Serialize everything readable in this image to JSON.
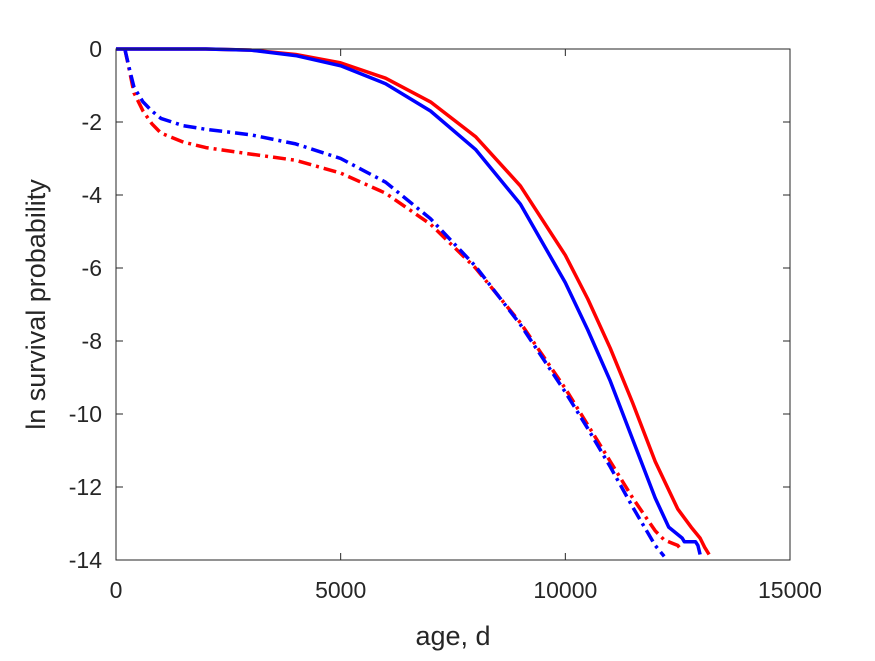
{
  "chart_data": {
    "type": "line",
    "title": "",
    "xlabel": "age, d",
    "ylabel": "ln survival probability",
    "xlim": [
      0,
      15000
    ],
    "ylim": [
      -14,
      0
    ],
    "xticks": [
      0,
      5000,
      10000,
      15000
    ],
    "yticks": [
      0,
      -2,
      -4,
      -6,
      -8,
      -10,
      -12,
      -14
    ],
    "grid": false,
    "legend": "none",
    "axis_color": "#262626",
    "series": [
      {
        "color": "#ff0000",
        "style": "solid",
        "x": [
          0,
          500,
          1000,
          2000,
          3000,
          4000,
          5000,
          6000,
          7000,
          8000,
          9000,
          10000,
          10500,
          11000,
          11500,
          12000,
          12500,
          12800,
          13000,
          13100,
          13200
        ],
        "y": [
          0,
          0,
          0,
          0,
          -0.03,
          -0.15,
          -0.38,
          -0.8,
          -1.45,
          -2.4,
          -3.75,
          -5.65,
          -6.85,
          -8.2,
          -9.7,
          -11.3,
          -12.6,
          -13.1,
          -13.4,
          -13.65,
          -13.85
        ]
      },
      {
        "color": "#0000ff",
        "style": "solid",
        "x": [
          0,
          500,
          1000,
          2000,
          3000,
          4000,
          5000,
          6000,
          7000,
          8000,
          9000,
          10000,
          10500,
          11000,
          11500,
          12000,
          12300,
          12600,
          12650,
          12900,
          12950,
          13000
        ],
        "y": [
          0,
          0,
          0,
          0,
          -0.03,
          -0.18,
          -0.46,
          -0.95,
          -1.7,
          -2.75,
          -4.25,
          -6.4,
          -7.7,
          -9.1,
          -10.7,
          -12.3,
          -13.1,
          -13.4,
          -13.5,
          -13.5,
          -13.6,
          -13.85
        ]
      },
      {
        "color": "#ff0000",
        "style": "dash-dot",
        "x": [
          200,
          300,
          400,
          600,
          800,
          1000,
          1500,
          2000,
          3000,
          4000,
          5000,
          6000,
          7000,
          8000,
          9000,
          10000,
          10500,
          11000,
          11500,
          12000,
          12200,
          12400,
          12500,
          12600
        ],
        "y": [
          -0.02,
          -0.6,
          -1.2,
          -1.7,
          -2.05,
          -2.3,
          -2.55,
          -2.7,
          -2.88,
          -3.05,
          -3.4,
          -3.95,
          -4.8,
          -6.0,
          -7.5,
          -9.3,
          -10.3,
          -11.3,
          -12.3,
          -13.2,
          -13.45,
          -13.55,
          -13.6,
          -13.75
        ]
      },
      {
        "color": "#0000ff",
        "style": "dash-dot",
        "x": [
          200,
          300,
          400,
          600,
          800,
          1000,
          1500,
          2000,
          3000,
          4000,
          5000,
          6000,
          7000,
          8000,
          9000,
          10000,
          10500,
          11000,
          11500,
          12000,
          12200
        ],
        "y": [
          -0.02,
          -0.55,
          -1.05,
          -1.45,
          -1.7,
          -1.9,
          -2.1,
          -2.2,
          -2.35,
          -2.6,
          -3.0,
          -3.65,
          -4.65,
          -5.95,
          -7.55,
          -9.4,
          -10.4,
          -11.45,
          -12.55,
          -13.6,
          -13.9
        ]
      }
    ]
  }
}
